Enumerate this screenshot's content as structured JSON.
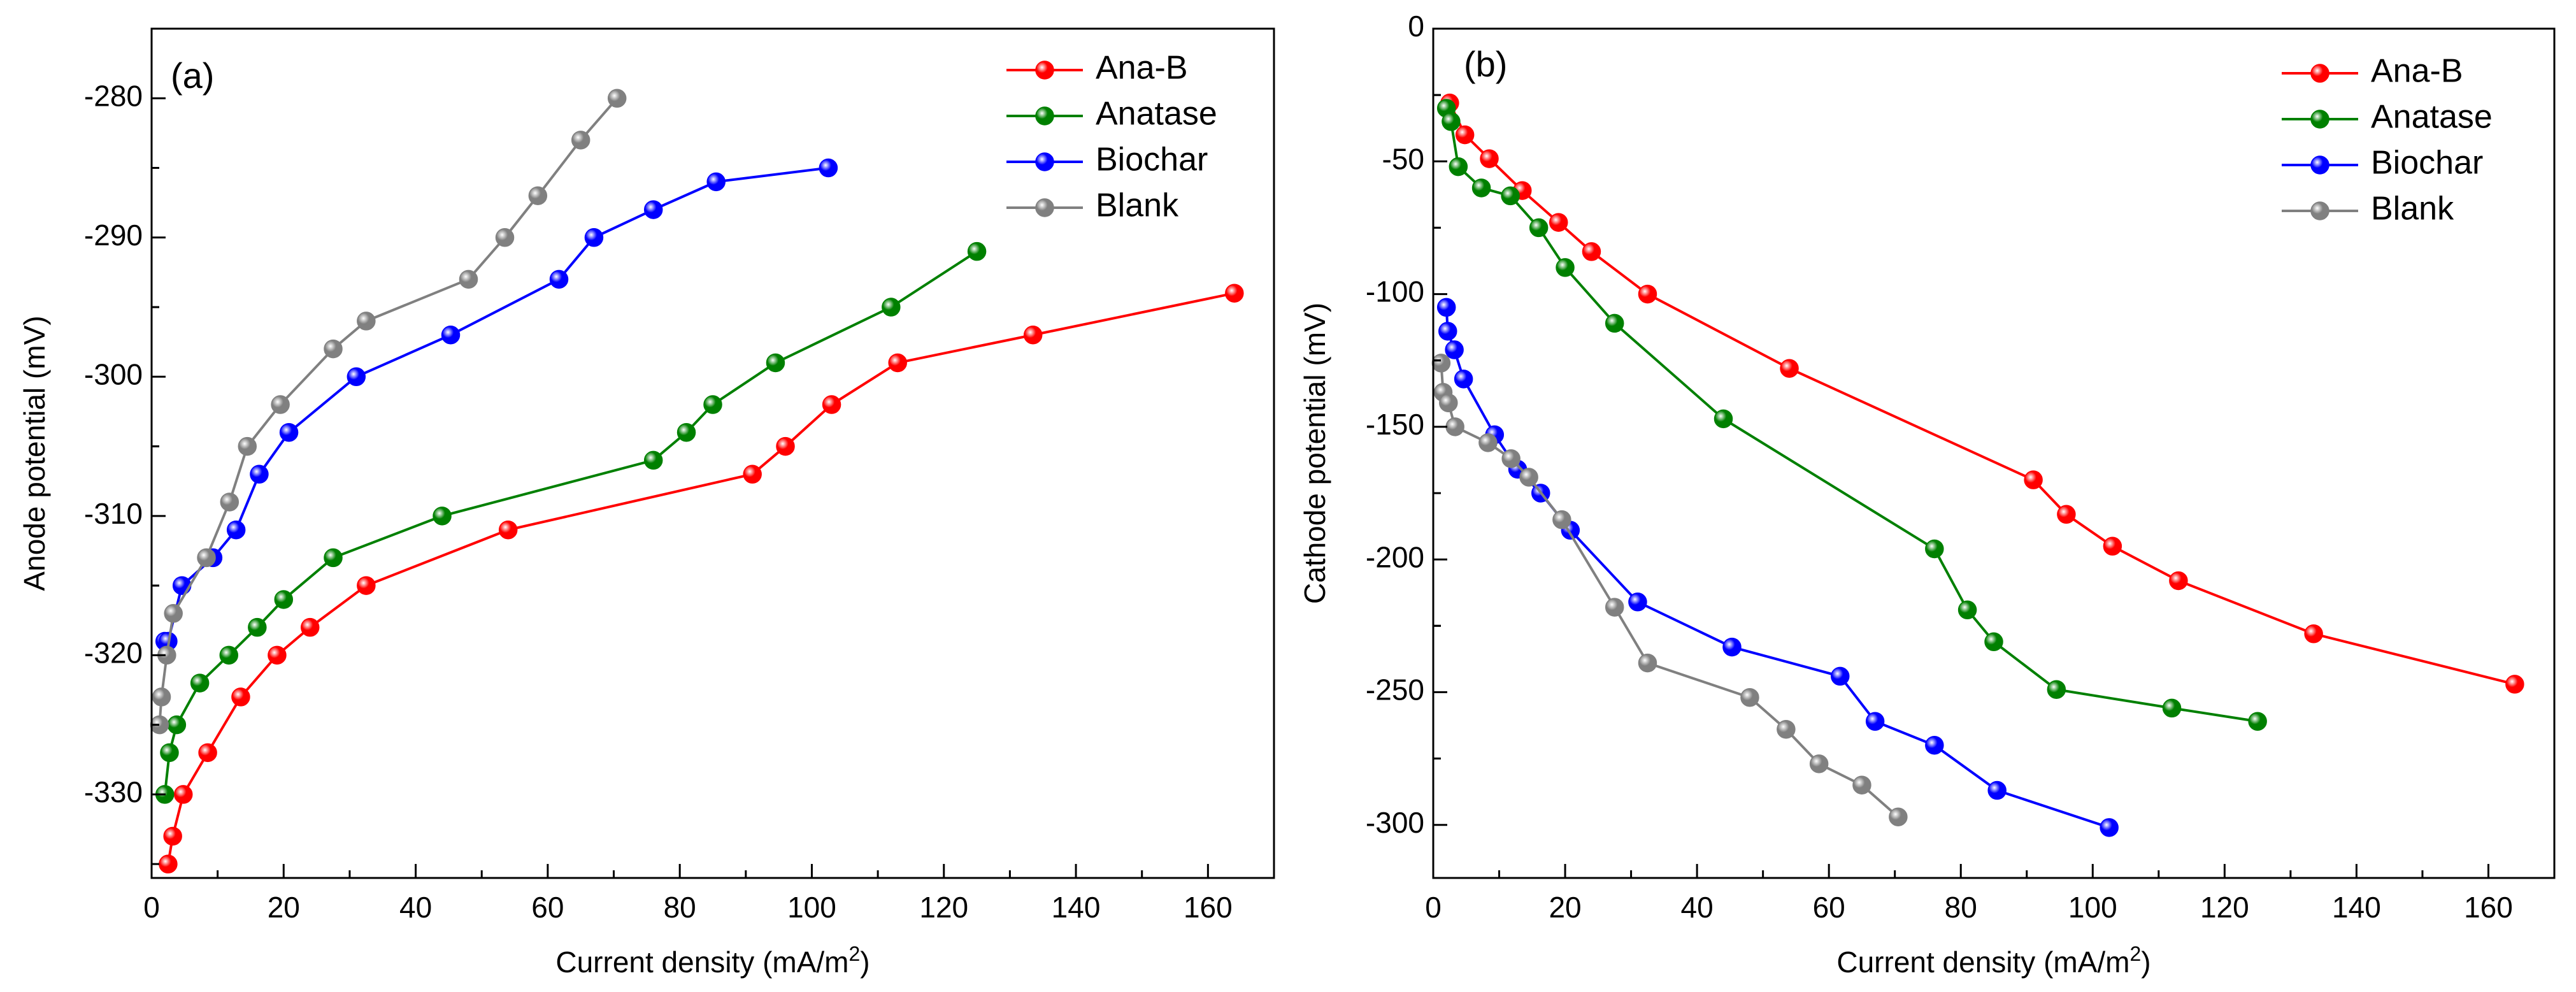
{
  "chart_data": [
    {
      "type": "line",
      "panel_label": "(a)",
      "xlabel": "Current density (mA/m",
      "xlabel_sup": "2",
      "xlabel_end": ")",
      "ylabel": "Anode potential (mV)",
      "xlim": [
        0,
        170
      ],
      "ylim": [
        -336,
        -275
      ],
      "xticks": [
        0,
        20,
        40,
        60,
        80,
        100,
        120,
        140,
        160
      ],
      "yticks": [
        -330,
        -320,
        -310,
        -300,
        -290,
        -280
      ],
      "legend_position": "top-right",
      "series": [
        {
          "name": "Ana-B",
          "color": "#ff0000",
          "x": [
            2.5,
            3.2,
            4.8,
            8.5,
            13.5,
            19,
            24,
            32.5,
            54,
            91,
            96,
            103,
            113,
            133.5,
            164
          ],
          "y": [
            -335,
            -333,
            -330,
            -327,
            -323,
            -320,
            -318,
            -315,
            -311,
            -307,
            -305,
            -302,
            -299,
            -297,
            -294
          ]
        },
        {
          "name": "Anatase",
          "color": "#008000",
          "x": [
            2,
            2.7,
            3.8,
            7.3,
            11.7,
            16,
            20,
            27.5,
            44,
            76,
            81,
            85,
            94.5,
            112,
            125
          ],
          "y": [
            -330,
            -327,
            -325,
            -322,
            -320,
            -318,
            -316,
            -313,
            -310,
            -306,
            -304,
            -302,
            -299,
            -295,
            -291
          ]
        },
        {
          "name": "Biochar",
          "color": "#0000ff",
          "x": [
            2,
            2.5,
            4.6,
            9.3,
            12.8,
            16.3,
            20.8,
            31,
            45.3,
            61.7,
            67,
            76,
            85.5,
            102.5
          ],
          "y": [
            -319,
            -319,
            -315,
            -313,
            -311,
            -307,
            -304,
            -300,
            -297,
            -293,
            -290,
            -288,
            -286,
            -285
          ]
        },
        {
          "name": "Blank",
          "color": "#808080",
          "x": [
            1.2,
            1.5,
            2.3,
            3.3,
            8.3,
            11.8,
            14.5,
            19.5,
            27.5,
            32.5,
            48,
            53.5,
            58.5,
            65,
            70.5
          ],
          "y": [
            -325,
            -323,
            -320,
            -317,
            -313,
            -309,
            -305,
            -302,
            -298,
            -296,
            -293,
            -290,
            -287,
            -283,
            -280
          ]
        }
      ]
    },
    {
      "type": "line",
      "panel_label": "(b)",
      "xlabel": "Current density (mA/m",
      "xlabel_sup": "2",
      "xlabel_end": ")",
      "ylabel": "Cathode potential (mV)",
      "xlim": [
        0,
        170
      ],
      "ylim": [
        -320,
        0
      ],
      "xticks": [
        0,
        20,
        40,
        60,
        80,
        100,
        120,
        140,
        160
      ],
      "yticks": [
        0,
        -50,
        -100,
        -150,
        -200,
        -250,
        -300
      ],
      "legend_position": "top-right",
      "series": [
        {
          "name": "Ana-B",
          "color": "#ff0000",
          "x": [
            2.5,
            4.8,
            8.5,
            13.5,
            19,
            24,
            32.5,
            54,
            91,
            96,
            103,
            113,
            133.5,
            164
          ],
          "y": [
            -28,
            -40,
            -49,
            -61,
            -73,
            -84,
            -100,
            -128,
            -170,
            -183,
            -195,
            -208,
            -228,
            -247
          ]
        },
        {
          "name": "Anatase",
          "color": "#008000",
          "x": [
            2,
            2.7,
            3.8,
            7.3,
            11.7,
            16,
            20,
            27.5,
            44,
            76,
            81,
            85,
            94.5,
            112,
            125
          ],
          "y": [
            -30,
            -35,
            -52,
            -60,
            -63,
            -75,
            -90,
            -111,
            -147,
            -196,
            -219,
            -231,
            -249,
            -256,
            -261
          ]
        },
        {
          "name": "Biochar",
          "color": "#0000ff",
          "x": [
            2,
            2.2,
            3.2,
            4.6,
            9.3,
            12.8,
            16.3,
            20.8,
            31,
            45.3,
            61.7,
            67,
            76,
            85.5,
            102.5
          ],
          "y": [
            -105,
            -114,
            -121,
            -132,
            -153,
            -166,
            -175,
            -189,
            -216,
            -233,
            -244,
            -261,
            -270,
            -287,
            -301
          ]
        },
        {
          "name": "Blank",
          "color": "#808080",
          "x": [
            1.2,
            1.5,
            2.3,
            3.3,
            8.3,
            11.8,
            14.5,
            19.5,
            27.5,
            32.5,
            48,
            53.5,
            58.5,
            65,
            70.5
          ],
          "y": [
            -126,
            -137,
            -141,
            -150,
            -156,
            -162,
            -169,
            -185,
            -218,
            -239,
            -252,
            -264,
            -277,
            -285,
            -297
          ]
        }
      ]
    }
  ]
}
